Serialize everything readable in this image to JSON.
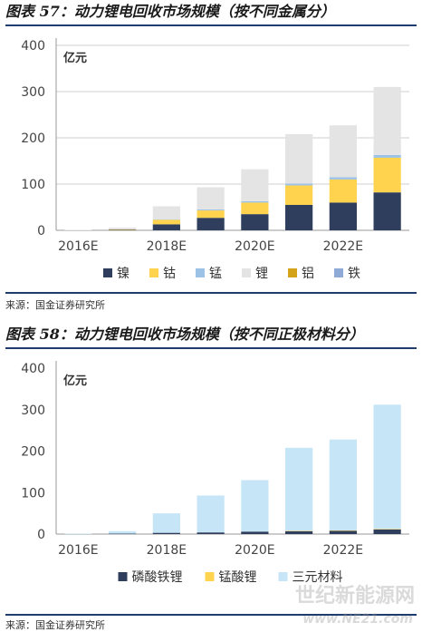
{
  "figure1": {
    "title": "图表 57：动力锂电回收市场规模（按不同金属分）",
    "source": "来源：国金证券研究所"
  },
  "figure2": {
    "title": "图表 58：动力锂电回收市场规模（按不同正极材料分）",
    "source": "来源：国金证券研究所"
  },
  "watermark": {
    "line1": "世纪新能源网",
    "line2": "www.NE21.com"
  },
  "chart_data": [
    {
      "type": "bar",
      "stacked": true,
      "title": "",
      "unit_label": "亿元",
      "xlabel": "",
      "ylabel": "",
      "ylim": [
        0,
        400
      ],
      "yticks": [
        0,
        100,
        200,
        300,
        400
      ],
      "grid": true,
      "legend_position": "bottom",
      "categories": [
        "2016E",
        "2017E",
        "2018E",
        "2019E",
        "2020E",
        "2021E",
        "2022E",
        "2023E"
      ],
      "tick_labels": [
        "2016E",
        "",
        "2018E",
        "",
        "2020E",
        "",
        "2022E",
        ""
      ],
      "series": [
        {
          "name": "镍",
          "color": "#2e3e5c",
          "values": [
            0,
            1,
            13,
            27,
            35,
            55,
            60,
            82
          ]
        },
        {
          "name": "钴",
          "color": "#ffd34d",
          "values": [
            0,
            1,
            10,
            16,
            25,
            42,
            50,
            75
          ]
        },
        {
          "name": "锰",
          "color": "#9cc3e6",
          "values": [
            0,
            0,
            1,
            2,
            3,
            4,
            5,
            6
          ]
        },
        {
          "name": "锂",
          "color": "#e4e4e4",
          "values": [
            1,
            4,
            28,
            48,
            69,
            107,
            112,
            147
          ]
        },
        {
          "name": "铝",
          "color": "#d4a31a",
          "values": [
            0,
            0,
            0,
            0,
            0,
            0,
            0,
            0
          ]
        },
        {
          "name": "铁",
          "color": "#8faad6",
          "values": [
            0,
            0,
            0,
            0,
            0,
            0,
            0,
            0
          ]
        }
      ]
    },
    {
      "type": "bar",
      "stacked": true,
      "title": "",
      "unit_label": "亿元",
      "xlabel": "",
      "ylabel": "",
      "ylim": [
        0,
        400
      ],
      "yticks": [
        0,
        100,
        200,
        300,
        400
      ],
      "grid": false,
      "legend_position": "bottom",
      "categories": [
        "2016E",
        "2017E",
        "2018E",
        "2019E",
        "2020E",
        "2021E",
        "2022E",
        "2023E"
      ],
      "tick_labels": [
        "2016E",
        "",
        "2018E",
        "",
        "2020E",
        "",
        "2022E",
        ""
      ],
      "series": [
        {
          "name": "磷酸铁锂",
          "color": "#2e3e5c",
          "values": [
            0,
            1,
            3,
            4,
            6,
            7,
            8,
            11
          ]
        },
        {
          "name": "锰酸锂",
          "color": "#ffd34d",
          "values": [
            0,
            0,
            0,
            0,
            0,
            1,
            1,
            1
          ]
        },
        {
          "name": "三元材料",
          "color": "#c6e5f7",
          "values": [
            1,
            6,
            47,
            89,
            124,
            200,
            219,
            300
          ]
        }
      ]
    }
  ]
}
